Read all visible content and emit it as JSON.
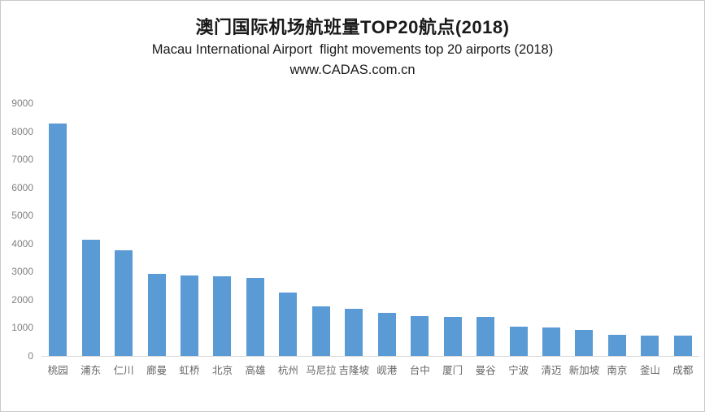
{
  "title": {
    "line1_cn": "澳门国际机场航班量TOP20航点(2018)",
    "line2_en": "Macau International Airport  flight movements top 20 airports (2018)",
    "line3_url": "www.CADAS.com.cn"
  },
  "chart_data": {
    "type": "bar",
    "title": "澳门国际机场航班量TOP20航点(2018)",
    "subtitle": "Macau International Airport  flight movements top 20 airports (2018)",
    "watermark": "www.CADAS.com.cn",
    "categories": [
      "桃园",
      "浦东",
      "仁川",
      "廊曼",
      "虹桥",
      "北京",
      "高雄",
      "杭州",
      "马尼拉",
      "吉隆坡",
      "岘港",
      "台中",
      "厦门",
      "曼谷",
      "宁波",
      "清迈",
      "新加坡",
      "南京",
      "釜山",
      "成都"
    ],
    "values": [
      8280,
      4130,
      3750,
      2920,
      2860,
      2840,
      2790,
      2260,
      1760,
      1670,
      1540,
      1430,
      1400,
      1390,
      1050,
      1020,
      940,
      740,
      730,
      710
    ],
    "xlabel": "",
    "ylabel": "",
    "ylim": [
      0,
      9000
    ],
    "yticks": [
      0,
      1000,
      2000,
      3000,
      4000,
      5000,
      6000,
      7000,
      8000,
      9000
    ],
    "grid": false,
    "legend_position": "none"
  },
  "style": {
    "bar_color": "#5B9BD5",
    "axis_line_color": "#D9D9D9",
    "ytick_label_color": "#808080",
    "category_label_color": "#666666",
    "title_color": "#1A1A1A",
    "frame_border_color": "#C9C9C9",
    "background_color": "#FFFFFF"
  }
}
